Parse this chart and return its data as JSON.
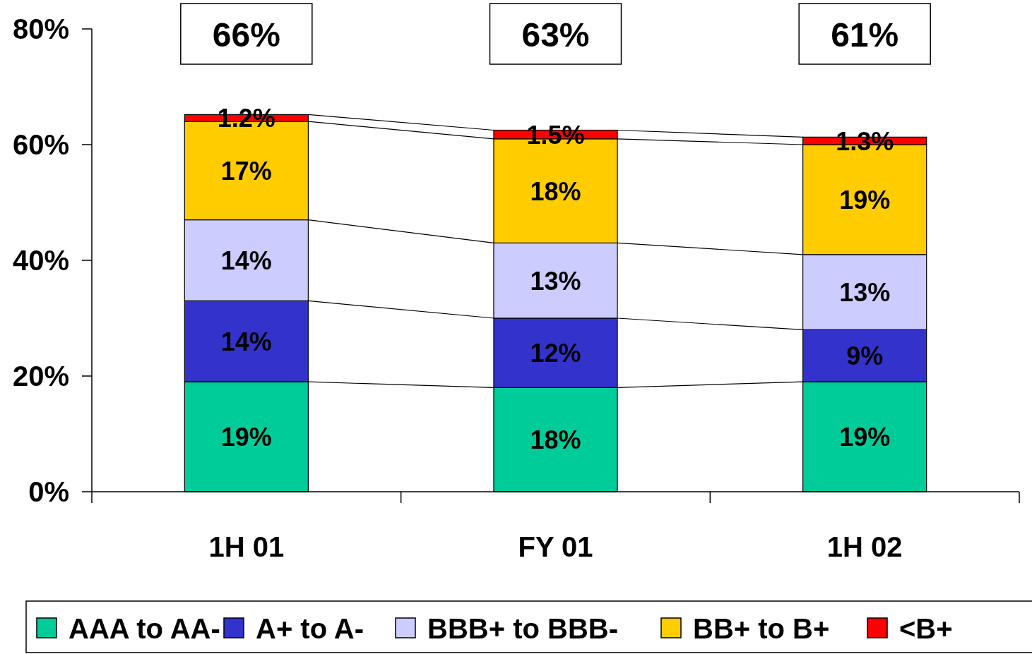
{
  "chart_data": {
    "type": "bar",
    "stacked": true,
    "categories": [
      "1H 01",
      "FY 01",
      "1H 02"
    ],
    "series": [
      {
        "name": "AAA to AA-",
        "color": "#00cc99",
        "values": [
          19,
          18,
          19
        ],
        "value_labels": [
          "19%",
          "18%",
          "19%"
        ]
      },
      {
        "name": "A+ to A-",
        "color": "#3333cc",
        "values": [
          14,
          12,
          9
        ],
        "value_labels": [
          "14%",
          "12%",
          "9%"
        ]
      },
      {
        "name": "BBB+ to BBB-",
        "color": "#ccccff",
        "values": [
          14,
          13,
          13
        ],
        "value_labels": [
          "14%",
          "13%",
          "13%"
        ]
      },
      {
        "name": "BB+ to B+",
        "color": "#ffcc00",
        "values": [
          17,
          18,
          19
        ],
        "value_labels": [
          "17%",
          "18%",
          "19%"
        ]
      },
      {
        "name": "<B+",
        "color": "#ff0000",
        "values": [
          1.2,
          1.5,
          1.3
        ],
        "value_labels": [
          "1.2%",
          "1.5%",
          "1.3%"
        ]
      }
    ],
    "totals": [
      "66%",
      "63%",
      "61%"
    ],
    "ylim": [
      0,
      80
    ],
    "yticks": [
      {
        "value": 0,
        "label": "0%"
      },
      {
        "value": 20,
        "label": "20%"
      },
      {
        "value": 40,
        "label": "40%"
      },
      {
        "value": 60,
        "label": "60%"
      },
      {
        "value": 80,
        "label": "80%"
      }
    ],
    "grid": false,
    "legend": "bottom"
  }
}
